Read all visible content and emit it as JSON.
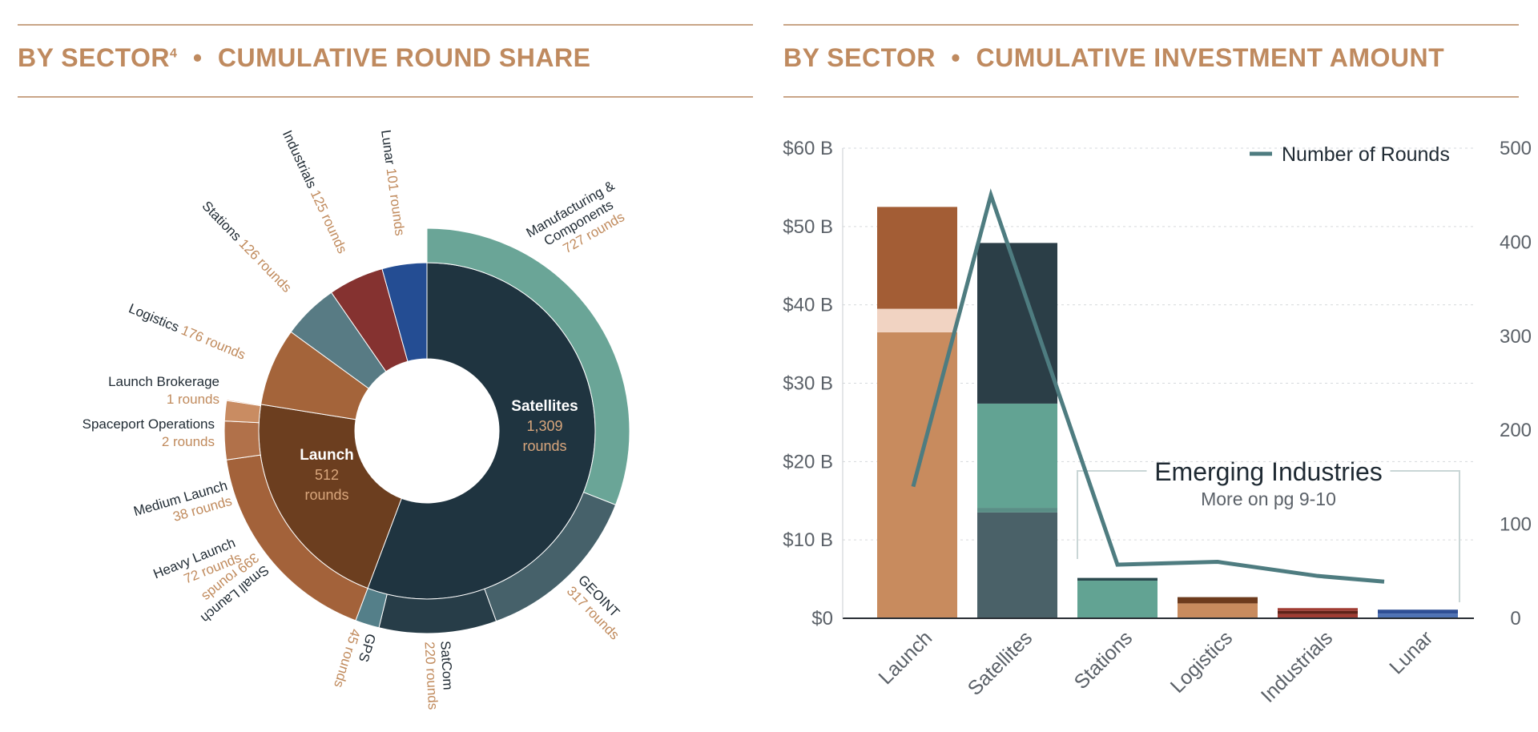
{
  "colors": {
    "accent": "#bf8a5f",
    "rule": "#c9a587",
    "dark_text": "#1f2a33",
    "round_text": "#c08a5c",
    "axis_text": "#5b6168",
    "grid": "#d6d9dc",
    "line": "#4e7c80"
  },
  "left_panel": {
    "title_main": "BY SECTOR",
    "title_sup": "4",
    "separator": "•",
    "title_sub": "CUMULATIVE ROUND SHARE"
  },
  "right_panel": {
    "title_main": "BY SECTOR",
    "separator": "•",
    "title_sub": "CUMULATIVE INVESTMENT AMOUNT"
  },
  "chart_data": [
    {
      "type": "pie",
      "subtype": "sunburst",
      "title": "BY SECTOR • CUMULATIVE ROUND SHARE",
      "inner": [
        {
          "name": "Satellites",
          "value": 1309,
          "value_label": "1,309",
          "unit": "rounds",
          "color": "#1f3440"
        },
        {
          "name": "Launch",
          "value": 512,
          "value_label": "512",
          "unit": "rounds",
          "color": "#6c3e1f"
        },
        {
          "name": "Logistics",
          "value": 176,
          "label_value": "176 rounds",
          "color": "#a4643a"
        },
        {
          "name": "Stations",
          "value": 126,
          "label_value": "126 rounds",
          "color": "#587b84"
        },
        {
          "name": "Industrials",
          "value": 125,
          "label_value": "125 rounds",
          "color": "#853230"
        },
        {
          "name": "Lunar",
          "value": 101,
          "label_value": "101 rounds",
          "color": "#244d93"
        }
      ],
      "outer": [
        {
          "name": "Manufacturing & Components",
          "lines": [
            "Manufacturing &",
            "Components"
          ],
          "value": 727,
          "label_value": "727 rounds",
          "parent": "Satellites",
          "color": "#6aa597"
        },
        {
          "name": "GEOINT",
          "lines": [
            "GEOINT"
          ],
          "value": 317,
          "label_value": "317 rounds",
          "parent": "Satellites",
          "color": "#46616a"
        },
        {
          "name": "SatCom",
          "lines": [
            "SatCom"
          ],
          "value": 220,
          "label_value": "220 rounds",
          "parent": "Satellites",
          "color": "#273d48"
        },
        {
          "name": "GPS",
          "lines": [
            "GPS"
          ],
          "value": 45,
          "label_value": "45 rounds",
          "parent": "Satellites",
          "color": "#547f89"
        },
        {
          "name": "Small Launch",
          "lines": [
            "Small Launch"
          ],
          "value": 399,
          "label_value": "399 rounds",
          "parent": "Launch",
          "color": "#a3623a"
        },
        {
          "name": "Heavy Launch",
          "lines": [
            "Heavy Launch"
          ],
          "value": 72,
          "label_value": "72 rounds",
          "parent": "Launch",
          "color": "#b1714a"
        },
        {
          "name": "Medium Launch",
          "lines": [
            "Medium Launch"
          ],
          "value": 38,
          "label_value": "38 rounds",
          "parent": "Launch",
          "color": "#c98c62"
        },
        {
          "name": "Spaceport Operations",
          "lines": [
            "Spaceport Operations"
          ],
          "value": 2,
          "label_value": "2 rounds",
          "parent": "Launch",
          "color": "#d99a73"
        },
        {
          "name": "Launch Brokerage",
          "lines": [
            "Launch Brokerage"
          ],
          "value": 1,
          "label_value": "1 rounds",
          "parent": "Launch",
          "color": "#f0d3c2"
        }
      ]
    },
    {
      "type": "bar",
      "subtype": "stacked bar with line on secondary axis",
      "title": "BY SECTOR • CUMULATIVE INVESTMENT AMOUNT",
      "categories": [
        "Launch",
        "Satellites",
        "Stations",
        "Logistics",
        "Industrials",
        "Lunar"
      ],
      "y_ticks": [
        "$0",
        "$10 B",
        "$20 B",
        "$30 B",
        "$40 B",
        "$50 B",
        "$60 B"
      ],
      "ylim": [
        0,
        60
      ],
      "y2_ticks": [
        "0",
        "100",
        "200",
        "300",
        "400",
        "500"
      ],
      "y2lim": [
        0,
        500
      ],
      "stacks": [
        [
          {
            "value": 36.5,
            "color": "#c88b5e"
          },
          {
            "value": 3,
            "color": "#f1d3c2"
          },
          {
            "value": 13,
            "color": "#a35d35"
          }
        ],
        [
          {
            "value": 13.5,
            "color": "#4a6168"
          },
          {
            "value": 0.6,
            "color": "#5a8e86"
          },
          {
            "value": 13.3,
            "color": "#62a393"
          },
          {
            "value": 20.5,
            "color": "#2b3e47"
          }
        ],
        [
          {
            "value": 4.8,
            "color": "#62a393"
          },
          {
            "value": 0.35,
            "color": "#2b4a4f"
          }
        ],
        [
          {
            "value": 1.9,
            "color": "#c88b5e"
          },
          {
            "value": 0.8,
            "color": "#6d3b1d"
          }
        ],
        [
          {
            "value": 0.55,
            "color": "#a03c33"
          },
          {
            "value": 0.4,
            "color": "#5f2218"
          },
          {
            "value": 0.35,
            "color": "#a03c33"
          }
        ],
        [
          {
            "value": 0.6,
            "color": "#4f73b5"
          },
          {
            "value": 0.5,
            "color": "#2f4f95"
          }
        ]
      ],
      "line_series": {
        "name": "Number of Rounds",
        "values": [
          140,
          450,
          57,
          60,
          45,
          39
        ]
      },
      "legend_position": "top-right",
      "annotation": {
        "title": "Emerging Industries",
        "subtitle": "More on pg 9-10",
        "spans": [
          "Stations",
          "Lunar"
        ]
      }
    }
  ]
}
